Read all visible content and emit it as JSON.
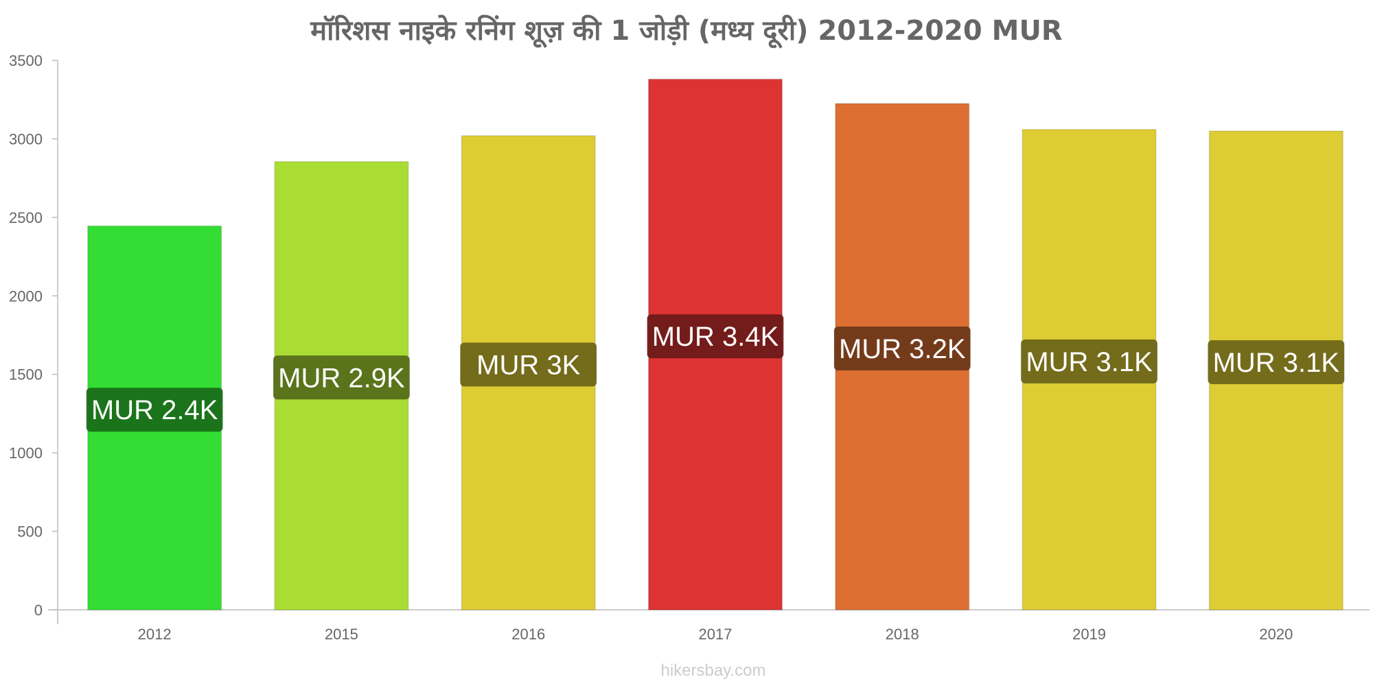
{
  "chart_data": {
    "type": "bar",
    "title": "मॉरिशस   नाइके   रनिंग   शूज़   की   1 जोड़ी   (मध्य   दूरी) 2012-2020 MUR",
    "categories": [
      "2012",
      "2015",
      "2016",
      "2017",
      "2018",
      "2019",
      "2020"
    ],
    "values": [
      2445,
      2855,
      3020,
      3380,
      3225,
      3060,
      3050
    ],
    "data_labels": [
      "MUR 2.4K",
      "MUR 2.9K",
      "MUR 3K",
      "MUR 3.4K",
      "MUR 3.2K",
      "MUR 3.1K",
      "MUR 3.1K"
    ],
    "bar_colors": [
      "#33dd33",
      "#aadd33",
      "#ddcc33",
      "#dd3333",
      "#dd6f33",
      "#ddcc33",
      "#ddcc33"
    ],
    "label_bg_colors": [
      "#1a6e1a",
      "#556e1a",
      "#6e661a",
      "#6e1a1a",
      "#6e381a",
      "#6e661a",
      "#6e661a"
    ],
    "ylim": [
      0,
      3500
    ],
    "yticks": [
      "0",
      "500",
      "1000",
      "1500",
      "2000",
      "2500",
      "3000",
      "3500"
    ],
    "xlabel": "",
    "ylabel": "",
    "grid": false
  },
  "watermark": "hikersbay.com"
}
